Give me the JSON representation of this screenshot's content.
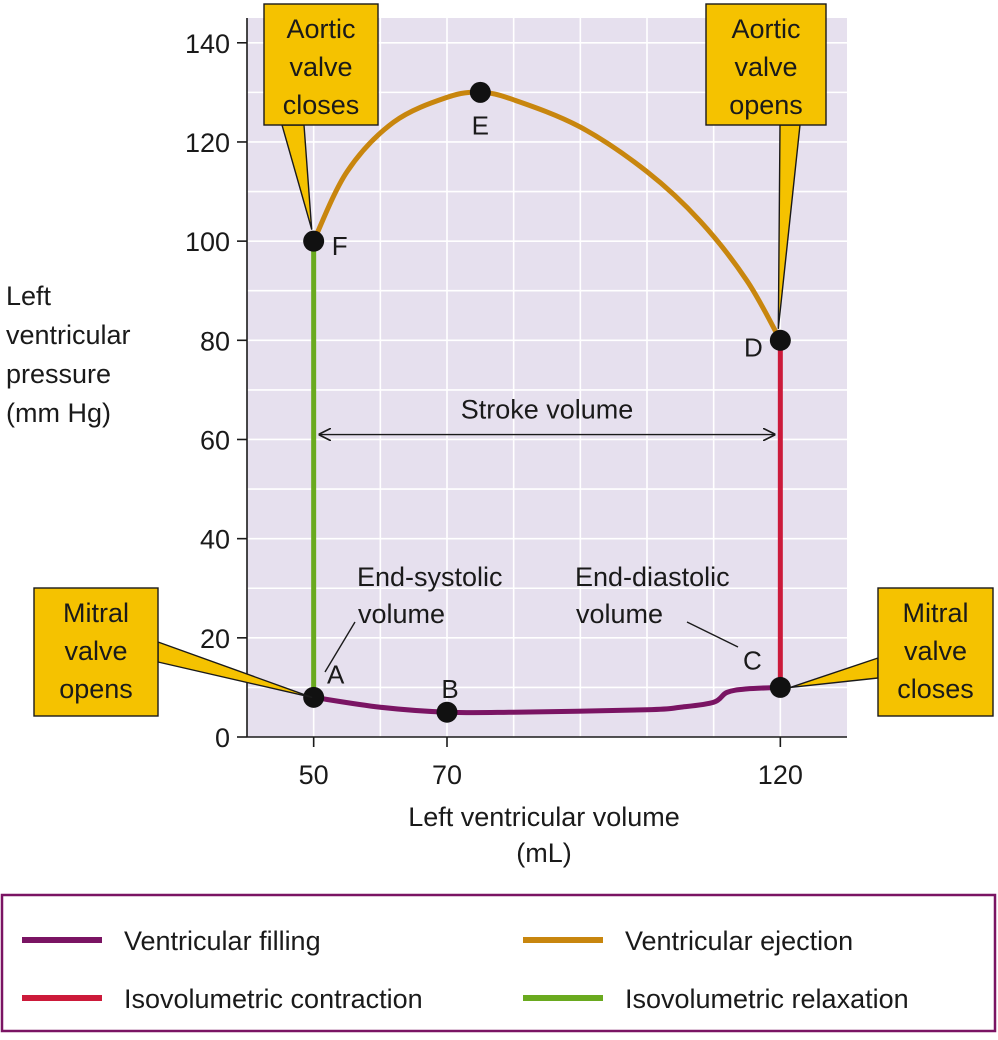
{
  "chart_data": {
    "type": "line",
    "title": "",
    "xlabel_lines": [
      "Left ventricular volume",
      "(mL)"
    ],
    "ylabel_lines": [
      "Left",
      "ventricular",
      "pressure",
      "(mm Hg)"
    ],
    "xlim": [
      40,
      130
    ],
    "ylim": [
      0,
      145
    ],
    "xticks": [
      50,
      70,
      120
    ],
    "yticks": [
      0,
      20,
      40,
      60,
      80,
      100,
      120,
      140
    ],
    "grid": true,
    "grid_x_step": 10,
    "grid_y_step": 10,
    "plot_background": "#e6e0ee",
    "points": [
      {
        "label": "A",
        "x": 50,
        "y": 8
      },
      {
        "label": "B",
        "x": 70,
        "y": 5
      },
      {
        "label": "C",
        "x": 120,
        "y": 10
      },
      {
        "label": "D",
        "x": 120,
        "y": 80
      },
      {
        "label": "E",
        "x": 75,
        "y": 130
      },
      {
        "label": "F",
        "x": 50,
        "y": 100
      }
    ],
    "series": [
      {
        "name": "Ventricular filling",
        "color": "#7a1463",
        "x": [
          50,
          60,
          70,
          80,
          100,
          105,
          110,
          112,
          115,
          120
        ],
        "y": [
          8,
          6,
          5,
          5,
          5.5,
          6,
          7,
          9,
          9.7,
          10
        ]
      },
      {
        "name": "Isovolumetric contraction",
        "color": "#cc1a3a",
        "x": [
          120,
          120
        ],
        "y": [
          10,
          80
        ]
      },
      {
        "name": "Ventricular ejection",
        "color": "#c8860e",
        "x": [
          120,
          115,
          108,
          100,
          90,
          80,
          75,
          70,
          62,
          55,
          50
        ],
        "y": [
          80,
          92,
          104,
          114,
          123,
          128.5,
          130,
          129,
          124,
          114,
          100
        ]
      },
      {
        "name": "Isovolumetric relaxation",
        "color": "#6aaa1f",
        "x": [
          50,
          50
        ],
        "y": [
          100,
          8
        ]
      }
    ],
    "stroke_volume": {
      "label": "Stroke volume",
      "x_from": 50,
      "x_to": 120,
      "y": 61
    },
    "annotations": [
      {
        "lines": [
          "End-systolic",
          "volume"
        ],
        "target": "A"
      },
      {
        "lines": [
          "End-diastolic",
          "volume"
        ],
        "target": "C"
      }
    ],
    "callouts": [
      {
        "lines": [
          "Aortic",
          "valve",
          "closes"
        ],
        "target": "F"
      },
      {
        "lines": [
          "Aortic",
          "valve",
          "opens"
        ],
        "target": "D"
      },
      {
        "lines": [
          "Mitral",
          "valve",
          "opens"
        ],
        "target": "A"
      },
      {
        "lines": [
          "Mitral",
          "valve",
          "closes"
        ],
        "target": "C"
      }
    ],
    "callout_color": "#f5c200",
    "legend": [
      {
        "label": "Ventricular filling",
        "color": "#7a1463"
      },
      {
        "label": "Ventricular ejection",
        "color": "#c8860e"
      },
      {
        "label": "Isovolumetric contraction",
        "color": "#cc1a3a"
      },
      {
        "label": "Isovolumetric relaxation",
        "color": "#6aaa1f"
      }
    ],
    "legend_border_color": "#7a1463",
    "legend_placement": "bottom"
  }
}
